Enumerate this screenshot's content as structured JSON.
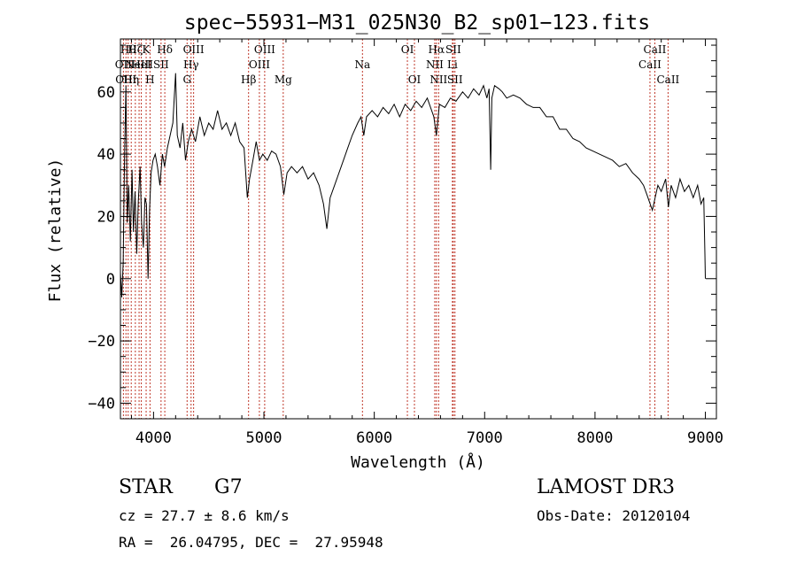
{
  "chart_data": {
    "type": "line",
    "title": "spec−55931−M31_025N30_B2_sp01−123.fits",
    "xlabel": "Wavelength (Å)",
    "ylabel": "Flux (relative)",
    "xlim": [
      3700,
      9100
    ],
    "ylim": [
      -45,
      77
    ],
    "x_ticks": [
      4000,
      5000,
      6000,
      7000,
      8000,
      9000
    ],
    "x_tick_labels": [
      "4000",
      "5000",
      "6000",
      "7000",
      "8000",
      "9000"
    ],
    "y_ticks": [
      -40,
      -20,
      0,
      20,
      40,
      60
    ],
    "y_tick_labels": [
      "−40",
      "−20",
      "0",
      "20",
      "40",
      "60"
    ],
    "grid": false,
    "line_color": "#000000",
    "marker_color": "#c0392b",
    "spectral_lines": [
      {
        "wavelength": 3727,
        "label": "OII",
        "row": 1
      },
      {
        "wavelength": 3750,
        "label": "OIII",
        "row": 2
      },
      {
        "wavelength": 3770,
        "label": "Hθ",
        "row": 0
      },
      {
        "wavelength": 3798,
        "label": "Hη",
        "row": 2
      },
      {
        "wavelength": 3835,
        "label": "Hζ",
        "row": 0
      },
      {
        "wavelength": 3869,
        "label": "NeIII",
        "row": 1
      },
      {
        "wavelength": 3889,
        "label": "HeI",
        "row": 1
      },
      {
        "wavelength": 3933,
        "label": "K",
        "row": 0
      },
      {
        "wavelength": 3968,
        "label": "H",
        "row": 2
      },
      {
        "wavelength": 4068,
        "label": "SII",
        "row": 1
      },
      {
        "wavelength": 4102,
        "label": "Hδ",
        "row": 0
      },
      {
        "wavelength": 4304,
        "label": "G",
        "row": 2
      },
      {
        "wavelength": 4340,
        "label": "Hγ",
        "row": 1
      },
      {
        "wavelength": 4363,
        "label": "OIII",
        "row": 0
      },
      {
        "wavelength": 4861,
        "label": "Hβ",
        "row": 2
      },
      {
        "wavelength": 4959,
        "label": "OIII",
        "row": 1
      },
      {
        "wavelength": 5007,
        "label": "OIII",
        "row": 0
      },
      {
        "wavelength": 5175,
        "label": "Mg",
        "row": 2
      },
      {
        "wavelength": 5893,
        "label": "Na",
        "row": 1
      },
      {
        "wavelength": 6300,
        "label": "OI",
        "row": 0
      },
      {
        "wavelength": 6364,
        "label": "OI",
        "row": 2
      },
      {
        "wavelength": 6548,
        "label": "NII",
        "row": 1
      },
      {
        "wavelength": 6563,
        "label": "Hα",
        "row": 0
      },
      {
        "wavelength": 6583,
        "label": "NII",
        "row": 2
      },
      {
        "wavelength": 6708,
        "label": "Li",
        "row": 1
      },
      {
        "wavelength": 6716,
        "label": "SII",
        "row": 0
      },
      {
        "wavelength": 6731,
        "label": "SII",
        "row": 2
      },
      {
        "wavelength": 8498,
        "label": "CaII",
        "row": 1
      },
      {
        "wavelength": 8542,
        "label": "CaII",
        "row": 0
      },
      {
        "wavelength": 8662,
        "label": "CaII",
        "row": 2
      }
    ],
    "series": [
      {
        "name": "flux",
        "points": [
          [
            3700,
            2
          ],
          [
            3712,
            -6
          ],
          [
            3725,
            5
          ],
          [
            3738,
            40
          ],
          [
            3750,
            62
          ],
          [
            3762,
            18
          ],
          [
            3775,
            30
          ],
          [
            3790,
            12
          ],
          [
            3805,
            35
          ],
          [
            3818,
            15
          ],
          [
            3832,
            28
          ],
          [
            3848,
            8
          ],
          [
            3862,
            25
          ],
          [
            3878,
            36
          ],
          [
            3892,
            18
          ],
          [
            3908,
            10
          ],
          [
            3922,
            26
          ],
          [
            3936,
            24
          ],
          [
            3950,
            0
          ],
          [
            3964,
            22
          ],
          [
            3978,
            34
          ],
          [
            3995,
            38
          ],
          [
            4015,
            40
          ],
          [
            4035,
            36
          ],
          [
            4058,
            30
          ],
          [
            4080,
            40
          ],
          [
            4100,
            36
          ],
          [
            4125,
            42
          ],
          [
            4150,
            46
          ],
          [
            4175,
            50
          ],
          [
            4200,
            66
          ],
          [
            4215,
            46
          ],
          [
            4240,
            42
          ],
          [
            4265,
            50
          ],
          [
            4290,
            38
          ],
          [
            4315,
            44
          ],
          [
            4345,
            48
          ],
          [
            4380,
            44
          ],
          [
            4420,
            52
          ],
          [
            4460,
            46
          ],
          [
            4500,
            50
          ],
          [
            4540,
            48
          ],
          [
            4580,
            54
          ],
          [
            4620,
            48
          ],
          [
            4660,
            50
          ],
          [
            4700,
            46
          ],
          [
            4740,
            50
          ],
          [
            4780,
            44
          ],
          [
            4820,
            42
          ],
          [
            4850,
            26
          ],
          [
            4870,
            32
          ],
          [
            4900,
            38
          ],
          [
            4930,
            44
          ],
          [
            4960,
            38
          ],
          [
            4990,
            40
          ],
          [
            5030,
            38
          ],
          [
            5070,
            41
          ],
          [
            5110,
            40
          ],
          [
            5150,
            36
          ],
          [
            5180,
            27
          ],
          [
            5210,
            34
          ],
          [
            5250,
            36
          ],
          [
            5300,
            34
          ],
          [
            5350,
            36
          ],
          [
            5400,
            32
          ],
          [
            5450,
            34
          ],
          [
            5500,
            30
          ],
          [
            5540,
            24
          ],
          [
            5570,
            16
          ],
          [
            5600,
            26
          ],
          [
            5640,
            30
          ],
          [
            5680,
            34
          ],
          [
            5720,
            38
          ],
          [
            5760,
            42
          ],
          [
            5800,
            46
          ],
          [
            5850,
            50
          ],
          [
            5880,
            52
          ],
          [
            5905,
            46
          ],
          [
            5930,
            52
          ],
          [
            5980,
            54
          ],
          [
            6030,
            52
          ],
          [
            6080,
            55
          ],
          [
            6130,
            53
          ],
          [
            6180,
            56
          ],
          [
            6230,
            52
          ],
          [
            6280,
            56
          ],
          [
            6330,
            54
          ],
          [
            6380,
            57
          ],
          [
            6430,
            55
          ],
          [
            6480,
            58
          ],
          [
            6540,
            52
          ],
          [
            6563,
            46
          ],
          [
            6590,
            56
          ],
          [
            6640,
            55
          ],
          [
            6690,
            58
          ],
          [
            6740,
            57
          ],
          [
            6800,
            60
          ],
          [
            6850,
            58
          ],
          [
            6900,
            61
          ],
          [
            6950,
            59
          ],
          [
            6990,
            62
          ],
          [
            7020,
            58
          ],
          [
            7040,
            61
          ],
          [
            7055,
            35
          ],
          [
            7065,
            58
          ],
          [
            7090,
            62
          ],
          [
            7130,
            61
          ],
          [
            7160,
            60
          ],
          [
            7200,
            58
          ],
          [
            7260,
            59
          ],
          [
            7320,
            58
          ],
          [
            7380,
            56
          ],
          [
            7440,
            55
          ],
          [
            7500,
            55
          ],
          [
            7560,
            52
          ],
          [
            7620,
            52
          ],
          [
            7680,
            48
          ],
          [
            7740,
            48
          ],
          [
            7800,
            45
          ],
          [
            7860,
            44
          ],
          [
            7920,
            42
          ],
          [
            7980,
            41
          ],
          [
            8040,
            40
          ],
          [
            8100,
            39
          ],
          [
            8160,
            38
          ],
          [
            8220,
            36
          ],
          [
            8280,
            37
          ],
          [
            8340,
            34
          ],
          [
            8400,
            32
          ],
          [
            8440,
            30
          ],
          [
            8470,
            27
          ],
          [
            8500,
            24
          ],
          [
            8520,
            22
          ],
          [
            8545,
            26
          ],
          [
            8570,
            30
          ],
          [
            8600,
            28
          ],
          [
            8640,
            32
          ],
          [
            8665,
            23
          ],
          [
            8690,
            30
          ],
          [
            8730,
            26
          ],
          [
            8770,
            32
          ],
          [
            8810,
            28
          ],
          [
            8850,
            30
          ],
          [
            8890,
            26
          ],
          [
            8930,
            30
          ],
          [
            8960,
            24
          ],
          [
            8985,
            26
          ],
          [
            8996,
            8
          ],
          [
            9000,
            0
          ]
        ]
      }
    ]
  },
  "footer": {
    "object_type": "STAR",
    "spectral_class": "G7",
    "survey": "LAMOST DR3",
    "redshift": "cz = 27.7 ± 8.6 km/s",
    "obs_date": "Obs-Date: 20120104",
    "coords": "RA =  26.04795, DEC =  27.95948"
  }
}
